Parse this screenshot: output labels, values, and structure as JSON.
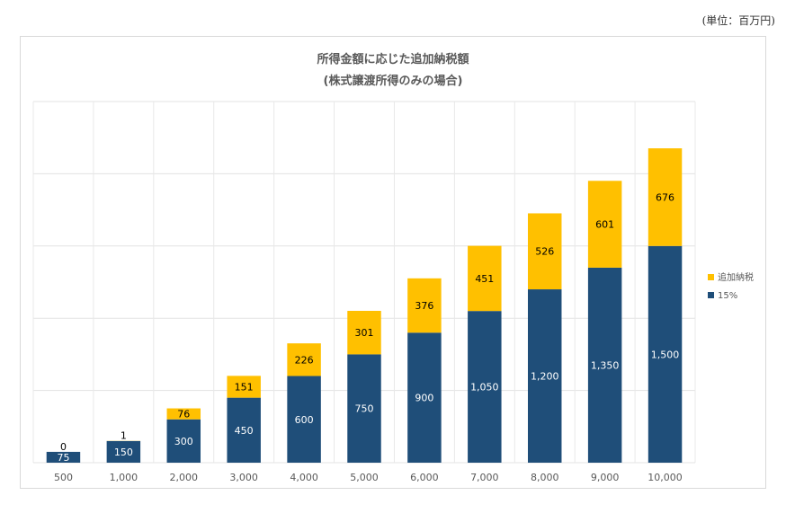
{
  "unit_note": "(単位：百万円)",
  "chart_data": {
    "type": "bar",
    "stacked": true,
    "title": "所得金額に応じた追加納税額",
    "subtitle": "(株式譲渡所得のみの場合)",
    "categories": [
      "500",
      "1,000",
      "2,000",
      "3,000",
      "4,000",
      "5,000",
      "6,000",
      "7,000",
      "8,000",
      "9,000",
      "10,000"
    ],
    "series": [
      {
        "name": "15%",
        "color": "#1f4e79",
        "label_color": "#ffffff",
        "values": [
          75,
          150,
          300,
          450,
          600,
          750,
          900,
          1050,
          1200,
          1350,
          1500
        ],
        "labels": [
          "75",
          "150",
          "300",
          "450",
          "600",
          "750",
          "900",
          "1,050",
          "1,200",
          "1,350",
          "1,500"
        ]
      },
      {
        "name": "追加納税",
        "color": "#ffc000",
        "label_color": "#000000",
        "values": [
          0,
          1,
          76,
          151,
          226,
          301,
          376,
          451,
          526,
          601,
          676
        ],
        "labels": [
          "0",
          "1",
          "76",
          "151",
          "226",
          "301",
          "376",
          "451",
          "526",
          "601",
          "676"
        ]
      }
    ],
    "ylim": [
      0,
      2500
    ],
    "y_gridlines": [
      0,
      500,
      1000,
      1500,
      2000,
      2500
    ],
    "y_tick_labels_shown": false,
    "x_gridlines": true,
    "legend": {
      "position": "right",
      "order": [
        "追加納税",
        "15%"
      ]
    }
  }
}
